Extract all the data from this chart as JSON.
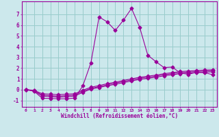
{
  "xlabel": "Windchill (Refroidissement éolien,°C)",
  "background_color": "#cce8ec",
  "grid_color": "#99cccc",
  "line_color": "#990099",
  "xlim": [
    -0.5,
    23.5
  ],
  "ylim": [
    -1.6,
    8.2
  ],
  "yticks": [
    -1,
    0,
    1,
    2,
    3,
    4,
    5,
    6,
    7
  ],
  "xticks": [
    0,
    1,
    2,
    3,
    4,
    5,
    6,
    7,
    8,
    9,
    10,
    11,
    12,
    13,
    14,
    15,
    16,
    17,
    18,
    19,
    20,
    21,
    22,
    23
  ],
  "line1_x": [
    0,
    1,
    2,
    3,
    4,
    5,
    6,
    7,
    8,
    9,
    10,
    11,
    12,
    13,
    14,
    15,
    16,
    17,
    18,
    19,
    20,
    21,
    22,
    23
  ],
  "line1_y": [
    0.0,
    -0.15,
    -0.8,
    -0.82,
    -0.85,
    -0.85,
    -0.78,
    0.35,
    2.5,
    6.75,
    6.3,
    5.5,
    6.45,
    7.55,
    5.8,
    3.2,
    2.6,
    2.05,
    2.1,
    1.55,
    1.42,
    1.62,
    1.58,
    1.38
  ],
  "line2_x": [
    0,
    1,
    2,
    3,
    4,
    5,
    6,
    7,
    8,
    9,
    10,
    11,
    12,
    13,
    14,
    15,
    16,
    17,
    18,
    19,
    20,
    21,
    22,
    23
  ],
  "line2_y": [
    0.0,
    -0.12,
    -0.6,
    -0.65,
    -0.7,
    -0.65,
    -0.6,
    -0.25,
    0.05,
    0.2,
    0.35,
    0.5,
    0.65,
    0.8,
    0.95,
    1.05,
    1.15,
    1.28,
    1.38,
    1.48,
    1.53,
    1.58,
    1.62,
    1.65
  ],
  "line3_x": [
    0,
    1,
    2,
    3,
    4,
    5,
    6,
    7,
    8,
    9,
    10,
    11,
    12,
    13,
    14,
    15,
    16,
    17,
    18,
    19,
    20,
    21,
    22,
    23
  ],
  "line3_y": [
    0.0,
    -0.09,
    -0.5,
    -0.55,
    -0.6,
    -0.55,
    -0.5,
    -0.15,
    0.12,
    0.28,
    0.45,
    0.6,
    0.75,
    0.9,
    1.05,
    1.15,
    1.25,
    1.38,
    1.48,
    1.58,
    1.63,
    1.68,
    1.72,
    1.75
  ],
  "line4_x": [
    0,
    1,
    2,
    3,
    4,
    5,
    6,
    7,
    8,
    9,
    10,
    11,
    12,
    13,
    14,
    15,
    16,
    17,
    18,
    19,
    20,
    21,
    22,
    23
  ],
  "line4_y": [
    0.0,
    -0.06,
    -0.38,
    -0.42,
    -0.46,
    -0.42,
    -0.38,
    -0.05,
    0.22,
    0.38,
    0.55,
    0.7,
    0.85,
    1.0,
    1.15,
    1.25,
    1.35,
    1.48,
    1.58,
    1.68,
    1.73,
    1.78,
    1.82,
    1.85
  ]
}
